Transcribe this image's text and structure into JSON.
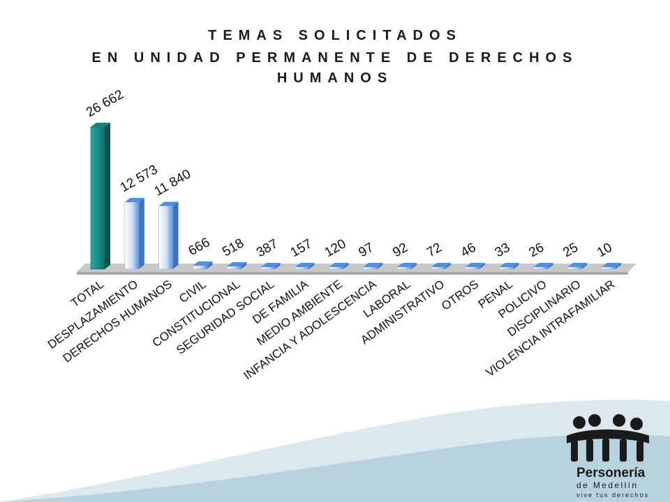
{
  "title_lines": [
    "TEMAS SOLICITADOS",
    "EN UNIDAD PERMANENTE DE DERECHOS",
    "HUMANOS"
  ],
  "colors": {
    "total_bar": "#1c8c88",
    "bar_light": "#e8f1fb",
    "bar_dark": "#4f8fe0",
    "floor": "#c9c9c9"
  },
  "chart_data": {
    "type": "bar",
    "title": "TEMAS SOLICITADOS EN UNIDAD PERMANENTE DE DERECHOS HUMANOS",
    "categories": [
      "TOTAL",
      "DESPLAZAMIENTO",
      "DERECHOS HUMANOS",
      "CIVIL",
      "CONSTITUCIONAL",
      "SEGURIDAD SOCIAL",
      "DE FAMILIA",
      "MEDIO AMBIENTE",
      "INFANCIA Y ADOLESCENCIA",
      "LABORAL",
      "ADMINISTRATIVO",
      "OTROS",
      "PENAL",
      "POLICIVO",
      "DISCIPLINARIO",
      "VIOLENCIA INTRAFAMILIAR"
    ],
    "values": [
      26662,
      12573,
      11840,
      666,
      518,
      387,
      157,
      120,
      97,
      92,
      72,
      46,
      33,
      26,
      25,
      10
    ],
    "data_labels": [
      "26 662",
      "12 573",
      "11 840",
      "666",
      "518",
      "387",
      "157",
      "120",
      "97",
      "92",
      "72",
      "46",
      "33",
      "26",
      "25",
      "10"
    ],
    "ylim": [
      0,
      26662
    ],
    "grid": false,
    "legend": "none",
    "style": "3d"
  },
  "logo": {
    "name": "Personería",
    "sub": "de Medellín",
    "tagline": "vive tus derechos"
  }
}
